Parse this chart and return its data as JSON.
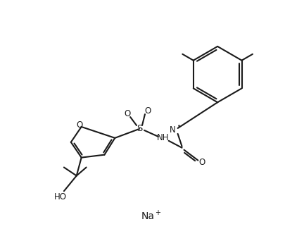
{
  "background_color": "#ffffff",
  "line_color": "#1a1a1a",
  "line_width": 1.5,
  "figsize": [
    4.05,
    3.52
  ],
  "dpi": 100,
  "na_label": "Na",
  "na_plus": "+",
  "nh_label": "NH",
  "n_label": "N",
  "o_label": "O",
  "oh_label": "HO",
  "s_label": "S",
  "o_so2_label": "O",
  "c_carbonyl_o_label": "O",
  "n_charge": "•"
}
